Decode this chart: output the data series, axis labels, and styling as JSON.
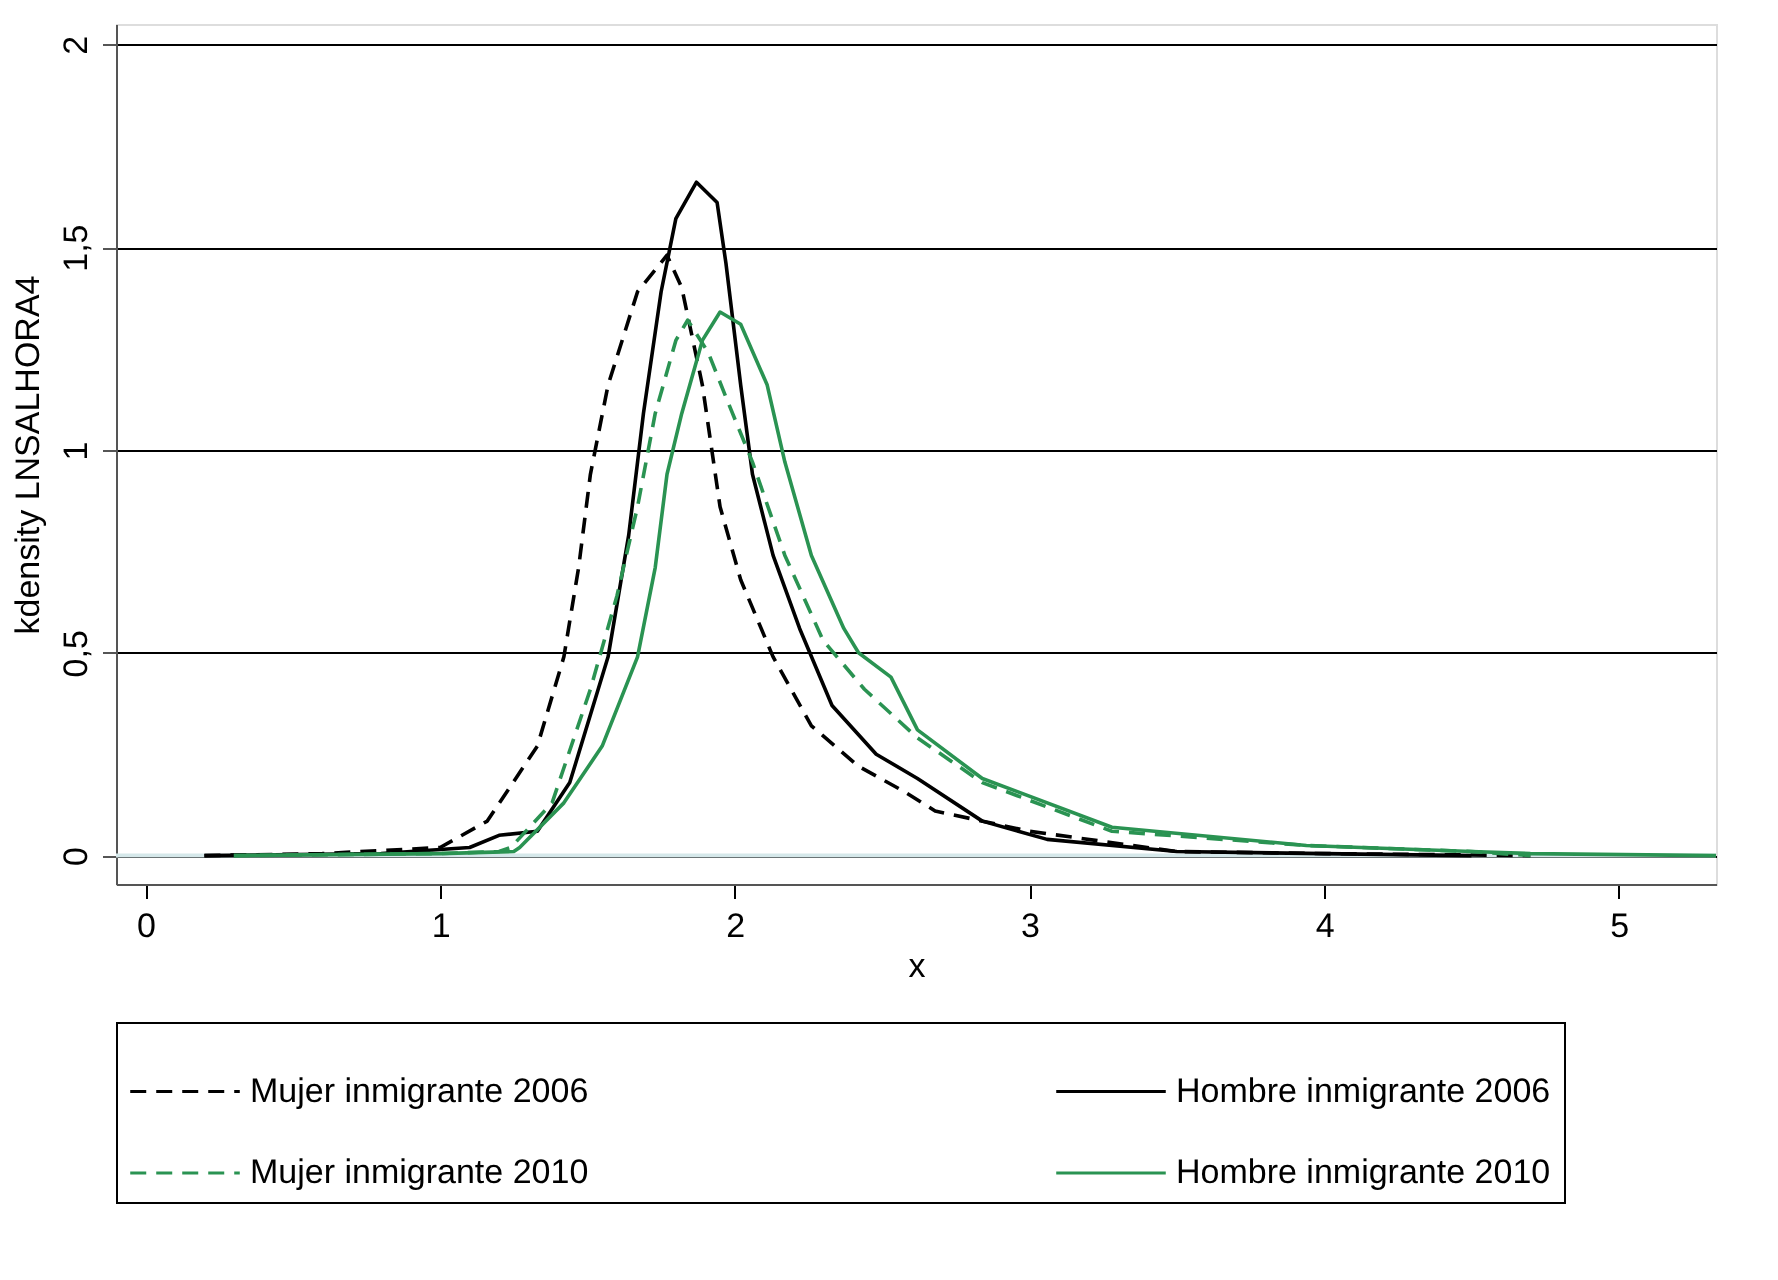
{
  "chart_data": {
    "type": "line",
    "xlabel": "x",
    "ylabel": "kdensity LNSALHORA4",
    "xlim": [
      -0.1,
      5.33
    ],
    "xticks": [
      0,
      1,
      2,
      3,
      4,
      5
    ],
    "ylim": [
      -0.07,
      2.05
    ],
    "yticks": [
      0,
      {
        "value": 0.5,
        "label": "0,5"
      },
      1,
      {
        "value": 1.5,
        "label": "1,5"
      },
      2
    ],
    "grid": "y",
    "legend": "bottom",
    "marker": "none",
    "ref_lines": [
      {
        "axis": "y",
        "value": 0,
        "label": null,
        "color": "#d5e8ea"
      }
    ],
    "series": [
      {
        "name": "Mujer inmigrante 2006",
        "color": "#000000",
        "line_style": "dashed",
        "x": [
          0.2,
          0.6,
          1.0,
          1.16,
          1.33,
          1.42,
          1.47,
          1.51,
          1.57,
          1.67,
          1.77,
          1.82,
          1.89,
          1.95,
          2.02,
          2.13,
          2.26,
          2.42,
          2.57,
          2.68,
          3.0,
          3.5,
          4.0,
          4.7
        ],
        "values": [
          0,
          0.005,
          0.02,
          0.085,
          0.27,
          0.49,
          0.71,
          0.94,
          1.16,
          1.39,
          1.48,
          1.4,
          1.16,
          0.86,
          0.68,
          0.49,
          0.32,
          0.22,
          0.16,
          0.11,
          0.06,
          0.01,
          0.005,
          0
        ]
      },
      {
        "name": "Hombre inmigrante 2006",
        "color": "#000000",
        "line_style": "solid",
        "x": [
          0.2,
          0.8,
          1.1,
          1.2,
          1.33,
          1.44,
          1.57,
          1.64,
          1.69,
          1.75,
          1.8,
          1.87,
          1.94,
          1.97,
          2.02,
          2.06,
          2.13,
          2.22,
          2.33,
          2.48,
          2.62,
          2.84,
          3.06,
          3.5,
          4.0,
          4.5
        ],
        "values": [
          0,
          0.005,
          0.02,
          0.05,
          0.06,
          0.18,
          0.49,
          0.79,
          1.09,
          1.39,
          1.57,
          1.66,
          1.61,
          1.46,
          1.16,
          0.94,
          0.74,
          0.56,
          0.37,
          0.25,
          0.19,
          0.085,
          0.04,
          0.01,
          0.005,
          0
        ]
      },
      {
        "name": "Mujer inmigrante 2010",
        "color": "#2a9352",
        "line_style": "dashed",
        "x": [
          0.3,
          1.0,
          1.2,
          1.24,
          1.38,
          1.51,
          1.6,
          1.67,
          1.73,
          1.8,
          1.84,
          1.91,
          1.97,
          2.06,
          2.17,
          2.3,
          2.44,
          2.62,
          2.84,
          3.28,
          3.94,
          4.5,
          4.7
        ],
        "values": [
          0,
          0.005,
          0.01,
          0.02,
          0.13,
          0.41,
          0.64,
          0.86,
          1.09,
          1.27,
          1.32,
          1.24,
          1.13,
          0.97,
          0.74,
          0.53,
          0.41,
          0.29,
          0.18,
          0.06,
          0.025,
          0.01,
          0
        ]
      },
      {
        "name": "Hombre inmigrante 2010",
        "color": "#2a9352",
        "line_style": "solid",
        "x": [
          0.3,
          1.0,
          1.25,
          1.27,
          1.42,
          1.55,
          1.67,
          1.73,
          1.77,
          1.82,
          1.89,
          1.95,
          2.02,
          2.11,
          2.17,
          2.26,
          2.37,
          2.42,
          2.53,
          2.62,
          2.84,
          3.28,
          3.94,
          4.5,
          4.7,
          5.33
        ],
        "values": [
          0,
          0.005,
          0.01,
          0.02,
          0.13,
          0.27,
          0.49,
          0.71,
          0.94,
          1.09,
          1.27,
          1.34,
          1.31,
          1.16,
          0.97,
          0.74,
          0.56,
          0.5,
          0.44,
          0.31,
          0.19,
          0.07,
          0.025,
          0.01,
          0.005,
          0
        ]
      }
    ]
  }
}
